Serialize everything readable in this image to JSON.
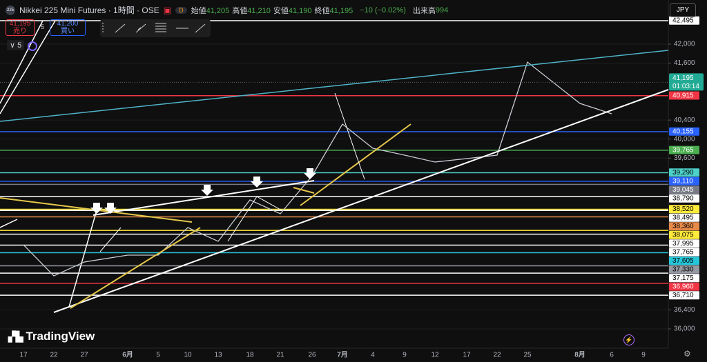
{
  "header": {
    "logo": "225",
    "symbol": "Nikkei 225 Mini Futures · 1時間 · OSE",
    "badge": "D",
    "ohlc": [
      {
        "label": "始値",
        "value": "41,205"
      },
      {
        "label": "高値",
        "value": "41,210"
      },
      {
        "label": "安値",
        "value": "41,190"
      },
      {
        "label": "終値",
        "value": "41,195"
      }
    ],
    "change": "−10 (−0.02%)",
    "volume_label": "出来高",
    "volume": "994"
  },
  "trade": {
    "sell_price": "41,195",
    "sell_label": "売り",
    "spread": "5",
    "buy_price": "41,200",
    "buy_label": "買い"
  },
  "indicators_count": "5",
  "currency": "JPY",
  "brand": "TradingView",
  "chart_data": {
    "type": "line",
    "categories": [
      "17",
      "22",
      "27",
      "6月",
      "5",
      "10",
      "13",
      "18",
      "21",
      "26",
      "7月",
      "4",
      "9",
      "12",
      "17",
      "22",
      "25",
      "8月",
      "6",
      "9"
    ],
    "series": [
      {
        "name": "Nikkei 225 Mini Futures",
        "color": "#c9ccd4",
        "values": [
          37772,
          37118,
          37409,
          37554,
          37554,
          38135,
          37845,
          38717,
          38426,
          39225,
          40315,
          39806,
          39661,
          39516,
          39588,
          39661,
          41622,
          40750,
          40533,
          null
        ]
      }
    ],
    "ylim": [
      35593,
      42930
    ],
    "yticks": [
      {
        "value": 36000,
        "label": "36,000"
      },
      {
        "value": 36400,
        "label": "36,400"
      },
      {
        "value": 39600,
        "label": "39,600"
      },
      {
        "value": 40000,
        "label": "40,000"
      },
      {
        "value": 40400,
        "label": "40,400"
      },
      {
        "value": 41600,
        "label": "41,600"
      },
      {
        "value": 42000,
        "label": "42,000"
      }
    ],
    "grid": true,
    "last_price": {
      "value": 41195,
      "label": "41,195",
      "countdown": "01:03:14",
      "color": "#22ab94"
    },
    "levels": [
      {
        "value": 42495,
        "label": "42,495",
        "color": "#ffffff"
      },
      {
        "value": 40915,
        "label": "40,915",
        "color": "#f23645"
      },
      {
        "value": 40155,
        "label": "40,155",
        "color": "#2962ff"
      },
      {
        "value": 39765,
        "label": "39,765",
        "color": "#4caf50"
      },
      {
        "value": 39290,
        "label": "39,290",
        "color": "#4dd0c8"
      },
      {
        "value": 39110,
        "label": "39,110",
        "color": "#2962ff"
      },
      {
        "value": 39045,
        "label": "39,045",
        "color": "#787b86"
      },
      {
        "value": 38790,
        "label": "38,790",
        "color": "#ffffff"
      },
      {
        "value": 38520,
        "label": "38,520",
        "color": "#ffeb3b"
      },
      {
        "value": 38495,
        "label": "38,495",
        "color": "#ffffff"
      },
      {
        "value": 38360,
        "label": "38,360",
        "color": "#e68a4a"
      },
      {
        "value": 38075,
        "label": "38,075",
        "color": "#ffeb3b"
      },
      {
        "value": 37995,
        "label": "37,995",
        "color": "#ffffff"
      },
      {
        "value": 37765,
        "label": "37,765",
        "color": "#ffffff"
      },
      {
        "value": 37605,
        "label": "37,605",
        "color": "#26c6da"
      },
      {
        "value": 37330,
        "label": "37,330",
        "color": "#9598a1"
      },
      {
        "value": 37175,
        "label": "37,175",
        "color": "#ffffff"
      },
      {
        "value": 36960,
        "label": "36,960",
        "color": "#f23645"
      },
      {
        "value": 36710,
        "label": "36,710",
        "color": "#ffffff"
      }
    ]
  }
}
